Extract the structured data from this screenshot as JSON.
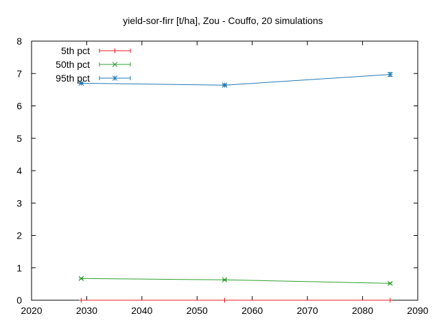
{
  "chart_data": {
    "type": "line",
    "title": "yield-sor-firr [t/ha], Zou - Couffo, 20 simulations",
    "xlabel": "",
    "ylabel": "",
    "xlim": [
      2020,
      2090
    ],
    "ylim": [
      0,
      8
    ],
    "xticks": [
      "2020",
      "2030",
      "2040",
      "2050",
      "2060",
      "2070",
      "2080",
      "2090"
    ],
    "yticks": [
      "0",
      "1",
      "2",
      "3",
      "4",
      "5",
      "6",
      "7",
      "8"
    ],
    "grid": false,
    "legend_position": "top-left",
    "x": [
      2029,
      2055,
      2085
    ],
    "series": [
      {
        "name": "5th pct",
        "color": "#e41a1c",
        "marker": "plus",
        "values": [
          0,
          0,
          0
        ],
        "err": [
          0,
          0,
          0
        ]
      },
      {
        "name": "50th pct",
        "color": "#2ca02c",
        "marker": "cross",
        "values": [
          0.67,
          0.63,
          0.52
        ],
        "err": [
          0.02,
          0.02,
          0.02
        ]
      },
      {
        "name": "95th pct",
        "color": "#1f78b4",
        "marker": "asterisk",
        "values": [
          6.7,
          6.64,
          6.97
        ],
        "err": [
          0.02,
          0.03,
          0.06
        ]
      }
    ]
  }
}
